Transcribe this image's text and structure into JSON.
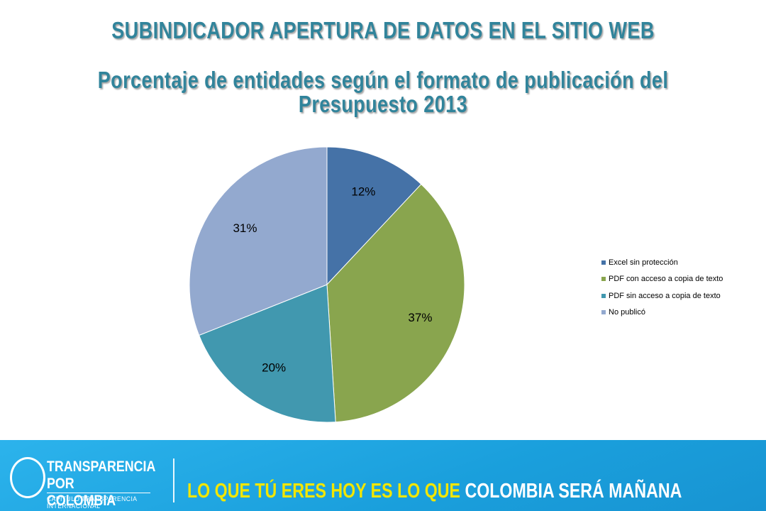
{
  "title": "SUBINDICADOR APERTURA DE DATOS EN EL SITIO WEB",
  "subtitle_line1": "Porcentaje de entidades según el formato de publicación del",
  "subtitle_line2": "Presupuesto 2013",
  "chart_data": {
    "type": "pie",
    "title": "Porcentaje de entidades según el formato de publicación del Presupuesto 2013",
    "categories": [
      "Excel sin protección",
      "PDF con acceso a copia de texto",
      "PDF sin acceso a copia de texto",
      "No publicó"
    ],
    "values": [
      12,
      37,
      20,
      31
    ],
    "labels": [
      "12%",
      "37%",
      "20%",
      "31%"
    ],
    "colors": [
      "#4572a7",
      "#89a54e",
      "#4198af",
      "#93a9cf"
    ],
    "legend": "right"
  },
  "footer": {
    "logo_line1": "TRANSPARENCIA",
    "logo_line2": "POR COLOMBIA",
    "logo_line3": "CAPÍTULO TRANSPARENCIA INTERNACIONAL",
    "slogan_part1": "LO QUE TÚ ERES HOY ES LO QUE",
    "slogan_part2": "COLOMBIA SERÁ MAÑANA",
    "slogan_color1": "#f2e600",
    "slogan_color2": "#ffffff",
    "background": "#1aa3e0"
  }
}
